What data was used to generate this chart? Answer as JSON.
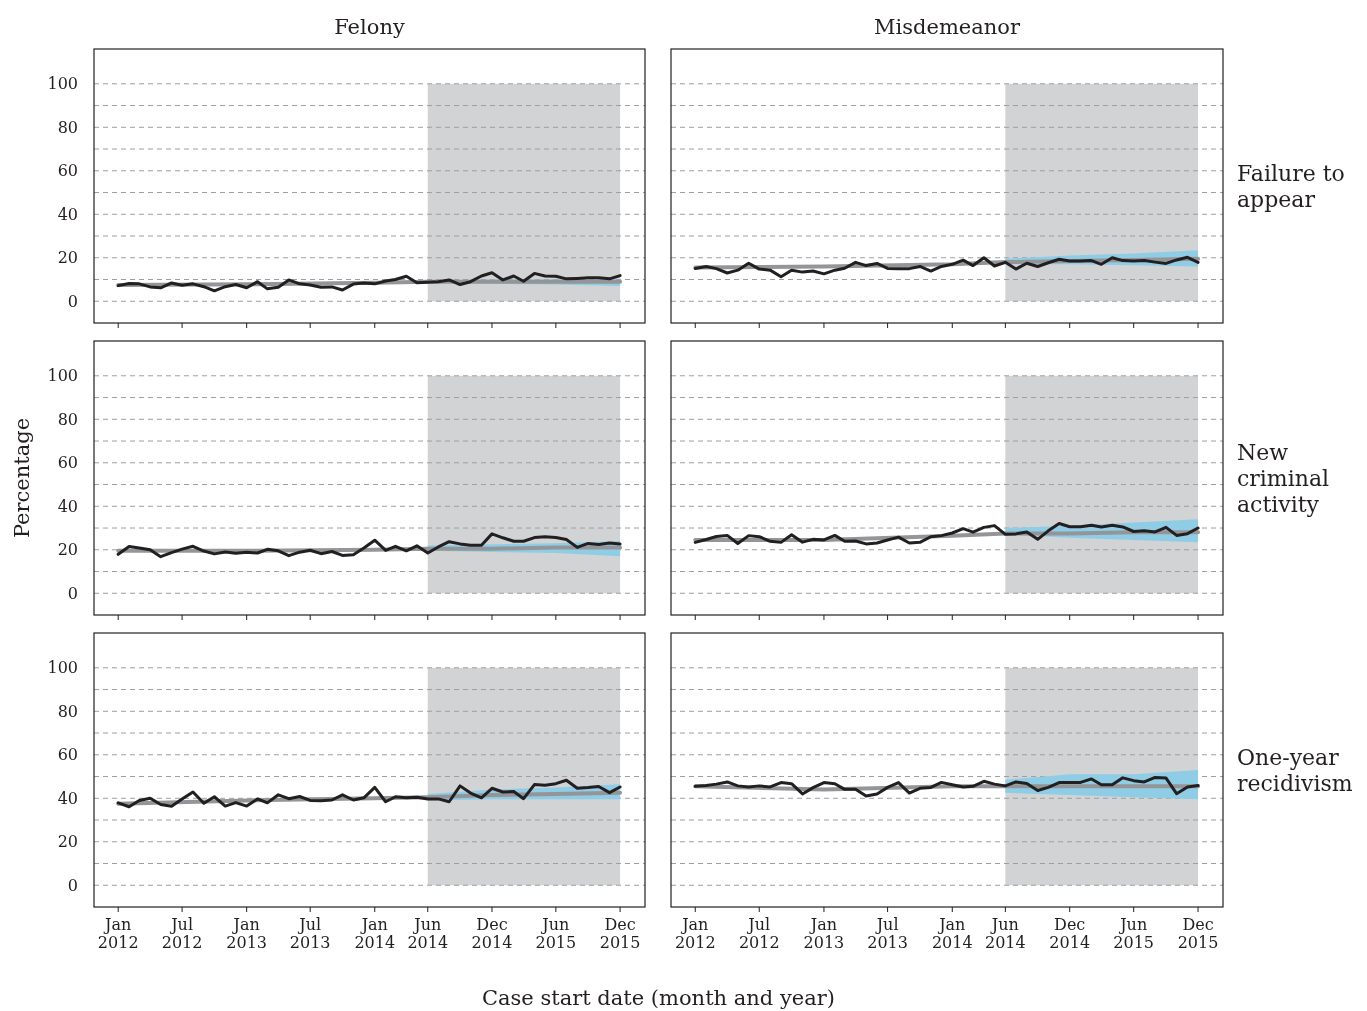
{
  "chart_data": [
    {
      "type": "line",
      "title": "Felony",
      "tick_labels": "y",
      "grid": "y",
      "x": [
        "2012-01",
        "2012-02",
        "2012-03",
        "2012-04",
        "2012-05",
        "2012-06",
        "2012-07",
        "2012-08",
        "2012-09",
        "2012-10",
        "2012-11",
        "2012-12",
        "2013-01",
        "2013-02",
        "2013-03",
        "2013-04",
        "2013-05",
        "2013-06",
        "2013-07",
        "2013-08",
        "2013-09",
        "2013-10",
        "2013-11",
        "2013-12",
        "2014-01",
        "2014-02",
        "2014-03",
        "2014-04",
        "2014-05",
        "2014-06",
        "2014-07",
        "2014-08",
        "2014-09",
        "2014-10",
        "2014-11",
        "2014-12",
        "2015-01",
        "2015-02",
        "2015-03",
        "2015-04",
        "2015-05",
        "2015-06",
        "2015-07",
        "2015-08",
        "2015-09",
        "2015-10",
        "2015-11",
        "2015-12"
      ],
      "xlim": [
        "2011-10-24",
        "2016-02-10"
      ],
      "xticks": [
        {
          "value": "2012-01",
          "label": null
        },
        {
          "value": "2012-07",
          "label": null
        },
        {
          "value": "2013-01",
          "label": null
        },
        {
          "value": "2013-07",
          "label": null
        },
        {
          "value": "2014-01",
          "label": null
        },
        {
          "value": "2014-06",
          "label": null
        },
        {
          "value": "2014-12",
          "label": null
        },
        {
          "value": "2015-06",
          "label": null
        },
        {
          "value": "2015-12",
          "label": null
        }
      ],
      "ylim": [
        -10,
        116
      ],
      "yticks": [
        0,
        {
          "value": 10,
          "label": null
        },
        20,
        {
          "value": 30,
          "label": null
        },
        40,
        {
          "value": 50,
          "label": null
        },
        60,
        {
          "value": 70,
          "label": null
        },
        80,
        {
          "value": 90,
          "label": null
        },
        100
      ],
      "bands": [
        {
          "axis": "x",
          "from": "2014-06",
          "to": "2015-12",
          "color": "#d1d3d4"
        }
      ],
      "series": [
        {
          "color": "#939598",
          "x": [
            "2012-01",
            "2013-01",
            "2014-01",
            "2014-06",
            "2014-12",
            "2015-06",
            "2015-12"
          ],
          "values": [
            7.5,
            7.8,
            8.5,
            9,
            9,
            9,
            9
          ],
          "lower": [
            null,
            null,
            null,
            8.5,
            8,
            7.7,
            7
          ],
          "upper": [
            null,
            null,
            null,
            9.5,
            10,
            10,
            10
          ]
        },
        {
          "color": "#231f20",
          "values": [
            7.2,
            8.2,
            8,
            6.6,
            6.2,
            8.4,
            7.4,
            8,
            6.7,
            4.8,
            6.7,
            7.7,
            6.2,
            9,
            5.7,
            6.4,
            9.8,
            8,
            7.5,
            6.4,
            6.6,
            5.2,
            7.9,
            8.4,
            8,
            9.3,
            10,
            11.5,
            8.5,
            8.7,
            9,
            9.8,
            7.7,
            9,
            11.6,
            13.1,
            9.8,
            11.6,
            9.2,
            12.8,
            11.6,
            11.5,
            10.3,
            10.5,
            10.8,
            10.8,
            10.3,
            11.8
          ]
        }
      ]
    },
    {
      "type": "line",
      "title": "Misdemeanor",
      "tick_labels": false,
      "grid": "y",
      "annotations": [
        "Failure to appear"
      ],
      "x": [
        "2012-01",
        "2012-02",
        "2012-03",
        "2012-04",
        "2012-05",
        "2012-06",
        "2012-07",
        "2012-08",
        "2012-09",
        "2012-10",
        "2012-11",
        "2012-12",
        "2013-01",
        "2013-02",
        "2013-03",
        "2013-04",
        "2013-05",
        "2013-06",
        "2013-07",
        "2013-08",
        "2013-09",
        "2013-10",
        "2013-11",
        "2013-12",
        "2014-01",
        "2014-02",
        "2014-03",
        "2014-04",
        "2014-05",
        "2014-06",
        "2014-07",
        "2014-08",
        "2014-09",
        "2014-10",
        "2014-11",
        "2014-12",
        "2015-01",
        "2015-02",
        "2015-03",
        "2015-04",
        "2015-05",
        "2015-06",
        "2015-07",
        "2015-08",
        "2015-09",
        "2015-10",
        "2015-11",
        "2015-12"
      ],
      "xlim": [
        "2011-10-24",
        "2016-02-10"
      ],
      "xticks": [
        {
          "value": "2012-01",
          "label": null
        },
        {
          "value": "2012-07",
          "label": null
        },
        {
          "value": "2013-01",
          "label": null
        },
        {
          "value": "2013-07",
          "label": null
        },
        {
          "value": "2014-01",
          "label": null
        },
        {
          "value": "2014-06",
          "label": null
        },
        {
          "value": "2014-12",
          "label": null
        },
        {
          "value": "2015-06",
          "label": null
        },
        {
          "value": "2015-12",
          "label": null
        }
      ],
      "ylim": [
        -10,
        116
      ],
      "yticks": [
        0,
        {
          "value": 10,
          "label": null
        },
        20,
        {
          "value": 30,
          "label": null
        },
        40,
        {
          "value": 50,
          "label": null
        },
        60,
        {
          "value": 70,
          "label": null
        },
        80,
        {
          "value": 90,
          "label": null
        },
        100
      ],
      "bands": [
        {
          "axis": "x",
          "from": "2014-06",
          "to": "2015-12",
          "color": "#d1d3d4"
        }
      ],
      "series": [
        {
          "color": "#939598",
          "x": [
            "2012-01",
            "2013-01",
            "2014-01",
            "2014-06",
            "2014-12",
            "2015-06",
            "2015-12"
          ],
          "values": [
            15.5,
            16,
            17,
            18,
            18.5,
            19,
            19.5
          ],
          "lower": [
            null,
            null,
            null,
            17,
            17,
            16.5,
            16
          ],
          "upper": [
            null,
            null,
            null,
            19.5,
            21,
            22,
            23.5
          ]
        },
        {
          "color": "#231f20",
          "values": [
            15.1,
            16,
            15,
            13,
            14.3,
            17.5,
            14.8,
            14.3,
            11.3,
            14.3,
            13.4,
            13.9,
            12.6,
            14.3,
            15.2,
            17.9,
            16.4,
            17.4,
            15.1,
            15,
            15,
            16,
            13.9,
            16,
            17,
            18.9,
            16.4,
            20,
            16.2,
            17.9,
            14.8,
            17.5,
            16,
            17.7,
            19.3,
            18.5,
            18.5,
            18.7,
            17,
            20,
            18.7,
            18.5,
            18.7,
            18,
            17.4,
            19,
            20.2,
            17.9
          ]
        }
      ]
    },
    {
      "type": "line",
      "ylabel": "Percentage",
      "tick_labels": "y",
      "grid": "y",
      "x": [
        "2012-01",
        "2012-02",
        "2012-03",
        "2012-04",
        "2012-05",
        "2012-06",
        "2012-07",
        "2012-08",
        "2012-09",
        "2012-10",
        "2012-11",
        "2012-12",
        "2013-01",
        "2013-02",
        "2013-03",
        "2013-04",
        "2013-05",
        "2013-06",
        "2013-07",
        "2013-08",
        "2013-09",
        "2013-10",
        "2013-11",
        "2013-12",
        "2014-01",
        "2014-02",
        "2014-03",
        "2014-04",
        "2014-05",
        "2014-06",
        "2014-07",
        "2014-08",
        "2014-09",
        "2014-10",
        "2014-11",
        "2014-12",
        "2015-01",
        "2015-02",
        "2015-03",
        "2015-04",
        "2015-05",
        "2015-06",
        "2015-07",
        "2015-08",
        "2015-09",
        "2015-10",
        "2015-11",
        "2015-12"
      ],
      "xlim": [
        "2011-10-24",
        "2016-02-10"
      ],
      "xticks": [
        {
          "value": "2012-01",
          "label": null
        },
        {
          "value": "2012-07",
          "label": null
        },
        {
          "value": "2013-01",
          "label": null
        },
        {
          "value": "2013-07",
          "label": null
        },
        {
          "value": "2014-01",
          "label": null
        },
        {
          "value": "2014-06",
          "label": null
        },
        {
          "value": "2014-12",
          "label": null
        },
        {
          "value": "2015-06",
          "label": null
        },
        {
          "value": "2015-12",
          "label": null
        }
      ],
      "ylim": [
        -10,
        116
      ],
      "yticks": [
        0,
        {
          "value": 10,
          "label": null
        },
        20,
        {
          "value": 30,
          "label": null
        },
        40,
        {
          "value": 50,
          "label": null
        },
        60,
        {
          "value": 70,
          "label": null
        },
        80,
        {
          "value": 90,
          "label": null
        },
        100
      ],
      "bands": [
        {
          "axis": "x",
          "from": "2014-06",
          "to": "2015-12",
          "color": "#d1d3d4"
        }
      ],
      "series": [
        {
          "color": "#939598",
          "x": [
            "2012-01",
            "2013-01",
            "2014-01",
            "2014-06",
            "2014-12",
            "2015-06",
            "2015-12"
          ],
          "values": [
            19.5,
            19.5,
            20,
            20.5,
            20.5,
            21,
            21
          ],
          "lower": [
            null,
            null,
            null,
            19.5,
            19,
            18.5,
            17
          ],
          "upper": [
            null,
            null,
            null,
            22,
            22.5,
            23,
            24
          ]
        },
        {
          "color": "#231f20",
          "values": [
            17.9,
            21.5,
            20.8,
            20,
            16.8,
            18.7,
            20.3,
            21.6,
            19.4,
            18.1,
            19,
            18.4,
            18.9,
            18.5,
            20.2,
            19.5,
            17.3,
            18.9,
            19.8,
            18.2,
            19.2,
            17.4,
            17.7,
            20.8,
            24.4,
            19.7,
            21.6,
            19.5,
            21.8,
            18.5,
            21.3,
            23.7,
            22.7,
            22.1,
            22.1,
            27.3,
            25.5,
            23.9,
            23.9,
            25.6,
            26,
            25.6,
            24.7,
            21.1,
            22.9,
            22.4,
            23.1,
            22.6
          ]
        }
      ]
    },
    {
      "type": "line",
      "tick_labels": false,
      "grid": "y",
      "annotations": [
        "New criminal activity"
      ],
      "x": [
        "2012-01",
        "2012-02",
        "2012-03",
        "2012-04",
        "2012-05",
        "2012-06",
        "2012-07",
        "2012-08",
        "2012-09",
        "2012-10",
        "2012-11",
        "2012-12",
        "2013-01",
        "2013-02",
        "2013-03",
        "2013-04",
        "2013-05",
        "2013-06",
        "2013-07",
        "2013-08",
        "2013-09",
        "2013-10",
        "2013-11",
        "2013-12",
        "2014-01",
        "2014-02",
        "2014-03",
        "2014-04",
        "2014-05",
        "2014-06",
        "2014-07",
        "2014-08",
        "2014-09",
        "2014-10",
        "2014-11",
        "2014-12",
        "2015-01",
        "2015-02",
        "2015-03",
        "2015-04",
        "2015-05",
        "2015-06",
        "2015-07",
        "2015-08",
        "2015-09",
        "2015-10",
        "2015-11",
        "2015-12"
      ],
      "xlim": [
        "2011-10-24",
        "2016-02-10"
      ],
      "xticks": [
        {
          "value": "2012-01",
          "label": null
        },
        {
          "value": "2012-07",
          "label": null
        },
        {
          "value": "2013-01",
          "label": null
        },
        {
          "value": "2013-07",
          "label": null
        },
        {
          "value": "2014-01",
          "label": null
        },
        {
          "value": "2014-06",
          "label": null
        },
        {
          "value": "2014-12",
          "label": null
        },
        {
          "value": "2015-06",
          "label": null
        },
        {
          "value": "2015-12",
          "label": null
        }
      ],
      "ylim": [
        -10,
        116
      ],
      "yticks": [
        0,
        {
          "value": 10,
          "label": null
        },
        20,
        {
          "value": 30,
          "label": null
        },
        40,
        {
          "value": 50,
          "label": null
        },
        60,
        {
          "value": 70,
          "label": null
        },
        80,
        {
          "value": 90,
          "label": null
        },
        100
      ],
      "bands": [
        {
          "axis": "x",
          "from": "2014-06",
          "to": "2015-12",
          "color": "#d1d3d4"
        }
      ],
      "series": [
        {
          "color": "#939598",
          "x": [
            "2012-01",
            "2013-01",
            "2014-01",
            "2014-06",
            "2014-12",
            "2015-06",
            "2015-12"
          ],
          "values": [
            24.5,
            24.5,
            26.5,
            27.5,
            27.5,
            28,
            28
          ],
          "lower": [
            null,
            null,
            null,
            27,
            25.5,
            24.5,
            23.5
          ],
          "upper": [
            null,
            null,
            null,
            30,
            31,
            32.5,
            34
          ]
        },
        {
          "color": "#231f20",
          "values": [
            23.4,
            24.7,
            26.1,
            26.6,
            22.9,
            26.5,
            26,
            23.9,
            23.4,
            26.9,
            23.5,
            24.8,
            24.5,
            26.6,
            23.9,
            24,
            22.7,
            23.1,
            24.5,
            25.8,
            23.1,
            23.4,
            26,
            26.5,
            27.7,
            29.7,
            28.1,
            30.3,
            31.1,
            27.1,
            27.3,
            28.2,
            24.8,
            28.7,
            32.1,
            30.6,
            30.6,
            31.3,
            30.5,
            31.3,
            30.5,
            28.4,
            28.7,
            28.2,
            30.3,
            26.6,
            27.4,
            30
          ]
        }
      ]
    },
    {
      "type": "line",
      "xlabel": "Case start date (month and year)",
      "grid": "y",
      "x": [
        "2012-01",
        "2012-02",
        "2012-03",
        "2012-04",
        "2012-05",
        "2012-06",
        "2012-07",
        "2012-08",
        "2012-09",
        "2012-10",
        "2012-11",
        "2012-12",
        "2013-01",
        "2013-02",
        "2013-03",
        "2013-04",
        "2013-05",
        "2013-06",
        "2013-07",
        "2013-08",
        "2013-09",
        "2013-10",
        "2013-11",
        "2013-12",
        "2014-01",
        "2014-02",
        "2014-03",
        "2014-04",
        "2014-05",
        "2014-06",
        "2014-07",
        "2014-08",
        "2014-09",
        "2014-10",
        "2014-11",
        "2014-12",
        "2015-01",
        "2015-02",
        "2015-03",
        "2015-04",
        "2015-05",
        "2015-06",
        "2015-07",
        "2015-08",
        "2015-09",
        "2015-10",
        "2015-11",
        "2015-12"
      ],
      "xlim": [
        "2011-10-24",
        "2016-02-10"
      ],
      "xticks": [
        {
          "value": "2012-01",
          "label": "Jan 2012"
        },
        {
          "value": "2012-07",
          "label": "Jul 2012"
        },
        {
          "value": "2013-01",
          "label": "Jan 2013"
        },
        {
          "value": "2013-07",
          "label": "Jul 2013"
        },
        {
          "value": "2014-01",
          "label": "Jan 2014"
        },
        {
          "value": "2014-06",
          "label": "Jun 2014"
        },
        {
          "value": "2014-12",
          "label": "Dec 2014"
        },
        {
          "value": "2015-06",
          "label": "Jun 2015"
        },
        {
          "value": "2015-12",
          "label": "Dec 2015"
        }
      ],
      "ylim": [
        -10,
        116
      ],
      "yticks": [
        0,
        {
          "value": 10,
          "label": null
        },
        20,
        {
          "value": 30,
          "label": null
        },
        40,
        {
          "value": 50,
          "label": null
        },
        60,
        {
          "value": 70,
          "label": null
        },
        80,
        {
          "value": 90,
          "label": null
        },
        100
      ],
      "bands": [
        {
          "axis": "x",
          "from": "2014-06",
          "to": "2015-12",
          "color": "#d1d3d4"
        }
      ],
      "series": [
        {
          "color": "#939598",
          "x": [
            "2012-01",
            "2013-01",
            "2014-01",
            "2014-06",
            "2014-12",
            "2015-06",
            "2015-12"
          ],
          "values": [
            37.5,
            39,
            40,
            40.5,
            41.5,
            42,
            42.5
          ],
          "lower": [
            null,
            null,
            null,
            39,
            39.5,
            39.5,
            39.5
          ],
          "upper": [
            null,
            null,
            null,
            42,
            44,
            45,
            46.5
          ]
        },
        {
          "color": "#231f20",
          "values": [
            37.9,
            36.1,
            39,
            40,
            37.1,
            36.3,
            39.7,
            42.9,
            37.7,
            40.7,
            36.4,
            38,
            36.4,
            39.7,
            37.9,
            41.6,
            39.8,
            40.8,
            39,
            38.9,
            39.2,
            41.6,
            39.2,
            40.2,
            45,
            38.4,
            40.7,
            40.2,
            40.5,
            39.7,
            39.7,
            38.4,
            45.7,
            42.4,
            40.2,
            44.6,
            42.9,
            43.1,
            39.8,
            46.3,
            46,
            46.7,
            48.3,
            44.6,
            44.9,
            45.4,
            42.6,
            45.2
          ]
        }
      ]
    },
    {
      "type": "line",
      "tick_labels": "x",
      "grid": "y",
      "annotations": [
        "One-year recidivism"
      ],
      "x": [
        "2012-01",
        "2012-02",
        "2012-03",
        "2012-04",
        "2012-05",
        "2012-06",
        "2012-07",
        "2012-08",
        "2012-09",
        "2012-10",
        "2012-11",
        "2012-12",
        "2013-01",
        "2013-02",
        "2013-03",
        "2013-04",
        "2013-05",
        "2013-06",
        "2013-07",
        "2013-08",
        "2013-09",
        "2013-10",
        "2013-11",
        "2013-12",
        "2014-01",
        "2014-02",
        "2014-03",
        "2014-04",
        "2014-05",
        "2014-06",
        "2014-07",
        "2014-08",
        "2014-09",
        "2014-10",
        "2014-11",
        "2014-12",
        "2015-01",
        "2015-02",
        "2015-03",
        "2015-04",
        "2015-05",
        "2015-06",
        "2015-07",
        "2015-08",
        "2015-09",
        "2015-10",
        "2015-11",
        "2015-12"
      ],
      "xlim": [
        "2011-10-24",
        "2016-02-10"
      ],
      "xticks": [
        {
          "value": "2012-01",
          "label": "Jan 2012"
        },
        {
          "value": "2012-07",
          "label": "Jul 2012"
        },
        {
          "value": "2013-01",
          "label": "Jan 2013"
        },
        {
          "value": "2013-07",
          "label": "Jul 2013"
        },
        {
          "value": "2014-01",
          "label": "Jan 2014"
        },
        {
          "value": "2014-06",
          "label": "Jun 2014"
        },
        {
          "value": "2014-12",
          "label": "Dec 2014"
        },
        {
          "value": "2015-06",
          "label": "Jun 2015"
        },
        {
          "value": "2015-12",
          "label": "Dec 2015"
        }
      ],
      "ylim": [
        -10,
        116
      ],
      "yticks": [
        0,
        {
          "value": 10,
          "label": null
        },
        20,
        {
          "value": 30,
          "label": null
        },
        40,
        {
          "value": 50,
          "label": null
        },
        60,
        {
          "value": 70,
          "label": null
        },
        80,
        {
          "value": 90,
          "label": null
        },
        100
      ],
      "bands": [
        {
          "axis": "x",
          "from": "2014-06",
          "to": "2015-12",
          "color": "#d1d3d4"
        }
      ],
      "series": [
        {
          "color": "#939598",
          "x": [
            "2012-01",
            "2013-01",
            "2014-01",
            "2014-06",
            "2014-12",
            "2015-06",
            "2015-12"
          ],
          "values": [
            45.5,
            44,
            45.5,
            45.5,
            45.5,
            45.5,
            45.5
          ],
          "lower": [
            null,
            null,
            null,
            42.5,
            41.5,
            40.5,
            39.5
          ],
          "upper": [
            null,
            null,
            null,
            48.5,
            51,
            51,
            53
          ]
        },
        {
          "color": "#231f20",
          "values": [
            45.5,
            45.9,
            46.5,
            47.5,
            45.7,
            45.2,
            45.7,
            45.2,
            47.2,
            46.7,
            42,
            44.9,
            47.2,
            46.7,
            44.1,
            44.1,
            41,
            42,
            45,
            47.2,
            42.4,
            44.6,
            45,
            47.3,
            46.2,
            45.2,
            45.5,
            47.8,
            46.5,
            45.7,
            47.5,
            46.8,
            43.6,
            45,
            47.2,
            47.2,
            47.3,
            48.9,
            46.2,
            46.2,
            49.4,
            48.1,
            47.5,
            49.6,
            49.3,
            42.1,
            45.2,
            45.9
          ]
        }
      ]
    }
  ]
}
